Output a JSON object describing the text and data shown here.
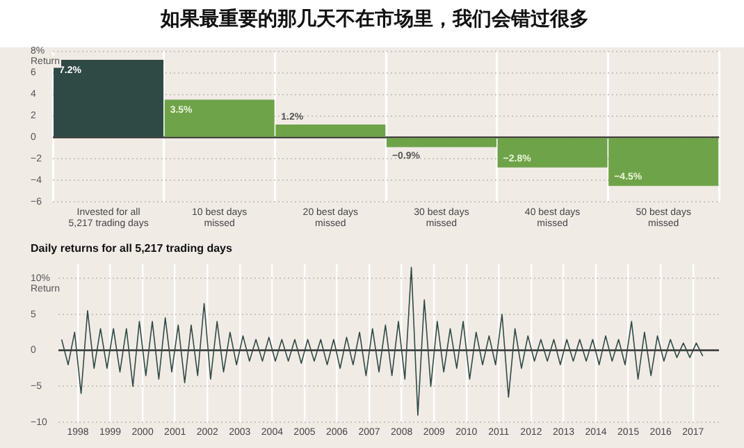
{
  "chart_data": [
    {
      "type": "bar",
      "title": "如果最重要的那几天不在市场里，我们会错过很多",
      "ylabel": "Return",
      "categories": [
        "Invested for all 5,217 trading days",
        "10 best days missed",
        "20 best days missed",
        "30 best days missed",
        "40 best days missed",
        "50 best days missed"
      ],
      "values": [
        7.2,
        3.5,
        1.2,
        -0.9,
        -2.8,
        -4.5
      ],
      "colors": [
        "#2f4a45",
        "#6fa34a",
        "#6fa34a",
        "#6fa34a",
        "#6fa34a",
        "#6fa34a"
      ],
      "value_labels": [
        "7.2%",
        "3.5%",
        "1.2%",
        "−0.9%",
        "−2.8%",
        "−4.5%"
      ],
      "ylim": [
        -6,
        8
      ],
      "yticks": [
        {
          "value": 8,
          "label": "8%"
        },
        6,
        4,
        2,
        0,
        {
          "value": -2,
          "label": "−2"
        },
        {
          "value": -4,
          "label": "−4"
        },
        {
          "value": -6,
          "label": "−6"
        }
      ],
      "ref_lines": [
        {
          "axis": "y",
          "value": 0,
          "color": "#333333"
        }
      ],
      "grid": true
    },
    {
      "type": "line",
      "title": "Daily returns for all 5,217 trading days",
      "ylabel": "Return",
      "x": [
        1998.0,
        1998.2,
        1998.4,
        1998.6,
        1998.8,
        1999.0,
        1999.2,
        1999.4,
        1999.6,
        1999.8,
        2000.0,
        2000.2,
        2000.4,
        2000.6,
        2000.8,
        2001.0,
        2001.2,
        2001.4,
        2001.6,
        2001.8,
        2002.0,
        2002.2,
        2002.4,
        2002.6,
        2002.8,
        2003.0,
        2003.2,
        2003.4,
        2003.6,
        2003.8,
        2004.0,
        2004.2,
        2004.4,
        2004.6,
        2004.8,
        2005.0,
        2005.2,
        2005.4,
        2005.6,
        2005.8,
        2006.0,
        2006.2,
        2006.4,
        2006.6,
        2006.8,
        2007.0,
        2007.2,
        2007.4,
        2007.6,
        2007.8,
        2008.0,
        2008.2,
        2008.4,
        2008.6,
        2008.8,
        2009.0,
        2009.2,
        2009.4,
        2009.6,
        2009.8,
        2010.0,
        2010.2,
        2010.4,
        2010.6,
        2010.8,
        2011.0,
        2011.2,
        2011.4,
        2011.6,
        2011.8,
        2012.0,
        2012.2,
        2012.4,
        2012.6,
        2012.8,
        2013.0,
        2013.2,
        2013.4,
        2013.6,
        2013.8,
        2014.0,
        2014.2,
        2014.4,
        2014.6,
        2014.8,
        2015.0,
        2015.2,
        2015.4,
        2015.6,
        2015.8,
        2016.0,
        2016.2,
        2016.4,
        2016.6,
        2016.8,
        2017.0,
        2017.2,
        2017.4,
        2017.6,
        2017.8
      ],
      "series": [
        {
          "color": "#2f4a45",
          "values": [
            1.5,
            -2,
            2.5,
            -6,
            5.5,
            -2.5,
            3,
            -2.5,
            3,
            -3,
            3,
            -5,
            4,
            -3.5,
            4,
            -4,
            4.5,
            -3,
            3.5,
            -4.5,
            3.5,
            -3.5,
            6.5,
            -4,
            4,
            -3,
            2.5,
            -2,
            2,
            -1.5,
            1.5,
            -1.5,
            1.8,
            -1.5,
            1.5,
            -1.5,
            1.5,
            -1.8,
            1.5,
            -1.5,
            1.5,
            -2,
            1.5,
            -2.5,
            1.8,
            -2,
            2.5,
            -3.5,
            3,
            -3,
            3.5,
            -3.5,
            4,
            -4,
            11.5,
            -9,
            7,
            -5,
            4,
            -3,
            3,
            -2.5,
            4,
            -4,
            2.5,
            -2,
            2,
            -2,
            5,
            -6.5,
            3,
            -2.5,
            2,
            -1.5,
            1.5,
            -1.5,
            1.5,
            -2,
            1.5,
            -1.5,
            1.5,
            -1.5,
            1.5,
            -2,
            2,
            -1.5,
            1.5,
            -2,
            4,
            -4,
            2.5,
            -3.5,
            2,
            -1.5,
            1.5,
            -1,
            1,
            -1,
            1,
            -0.8
          ]
        }
      ],
      "xlim": [
        1997.9,
        2018.3
      ],
      "xticks": [
        {
          "value": 1998.5,
          "label": "1998"
        },
        {
          "value": 1999.5,
          "label": "1999"
        },
        {
          "value": 2000.5,
          "label": "2000"
        },
        {
          "value": 2001.5,
          "label": "2001"
        },
        {
          "value": 2002.5,
          "label": "2002"
        },
        {
          "value": 2003.5,
          "label": "2003"
        },
        {
          "value": 2004.5,
          "label": "2004"
        },
        {
          "value": 2005.5,
          "label": "2005"
        },
        {
          "value": 2006.5,
          "label": "2006"
        },
        {
          "value": 2007.5,
          "label": "2007"
        },
        {
          "value": 2008.5,
          "label": "2008"
        },
        {
          "value": 2009.5,
          "label": "2009"
        },
        {
          "value": 2010.5,
          "label": "2010"
        },
        {
          "value": 2011.5,
          "label": "2011"
        },
        {
          "value": 2012.5,
          "label": "2012"
        },
        {
          "value": 2013.5,
          "label": "2013"
        },
        {
          "value": 2014.5,
          "label": "2014"
        },
        {
          "value": 2015.5,
          "label": "2015"
        },
        {
          "value": 2016.5,
          "label": "2016"
        },
        {
          "value": 2017.5,
          "label": "2017"
        }
      ],
      "ylim": [
        -10,
        12
      ],
      "ref_lines": [
        {
          "axis": "y",
          "value": 0,
          "color": "#333333"
        }
      ],
      "yticks": [
        {
          "value": 10,
          "label": "10%"
        },
        5,
        0,
        {
          "value": -5,
          "label": "−5"
        },
        {
          "value": -10,
          "label": "−10"
        }
      ],
      "grid": true
    }
  ]
}
